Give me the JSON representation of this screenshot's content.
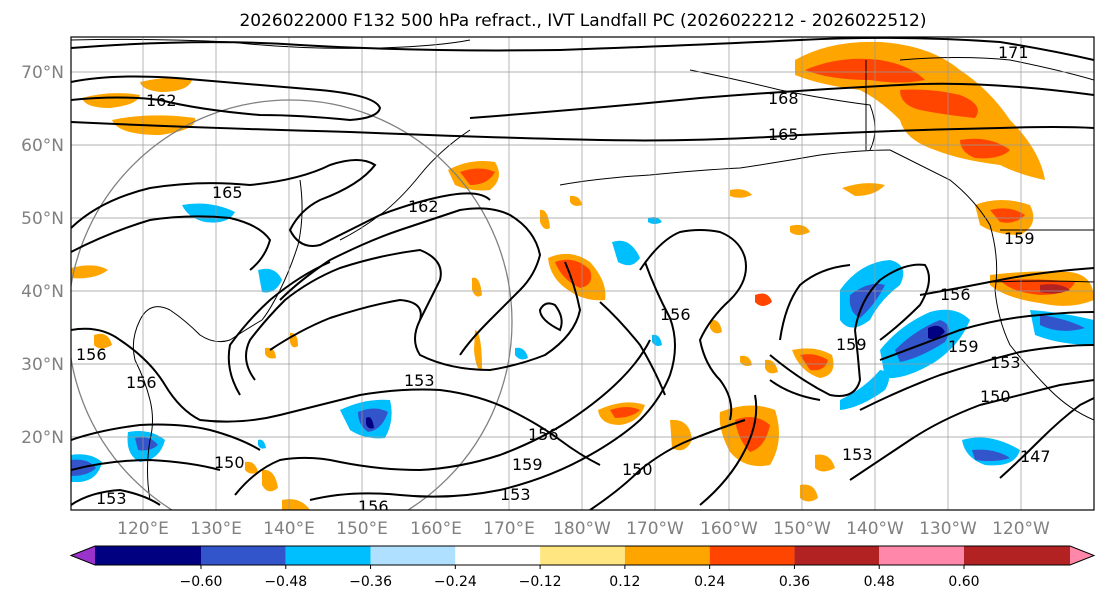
{
  "title": "2026022000 F132 500 hPa refract., IVT Landfall PC (2026022212 - 2026022512)",
  "lon_labels": [
    "120°E",
    "130°E",
    "140°E",
    "150°E",
    "160°E",
    "170°E",
    "180°W",
    "170°W",
    "160°W",
    "150°W",
    "140°W",
    "130°W",
    "120°W"
  ],
  "lat_labels": [
    "70°N",
    "60°N",
    "50°N",
    "40°N",
    "30°N",
    "20°N"
  ],
  "colorbar": {
    "ticks": [
      "−0.60",
      "−0.48",
      "−0.36",
      "−0.24",
      "−0.12",
      "0.12",
      "0.24",
      "0.36",
      "0.48",
      "0.60"
    ],
    "colors": [
      "#9933cc",
      "#000080",
      "#3355cc",
      "#00bfff",
      "#b0e0ff",
      "#ffffff",
      "#ffe680",
      "#ffa500",
      "#ff4500",
      "#b22222",
      "#ff88aa"
    ]
  },
  "contour_labels": [
    "171",
    "162",
    "168",
    "165",
    "165",
    "162",
    "159",
    "156",
    "156",
    "159",
    "156",
    "153",
    "156",
    "159",
    "153",
    "150",
    "150",
    "153",
    "156",
    "159",
    "153",
    "150",
    "147",
    "156",
    "153"
  ],
  "map": {
    "lon_range": [
      "112°E",
      "115°W"
    ],
    "lat_range": [
      "10°N",
      "75°N"
    ]
  }
}
